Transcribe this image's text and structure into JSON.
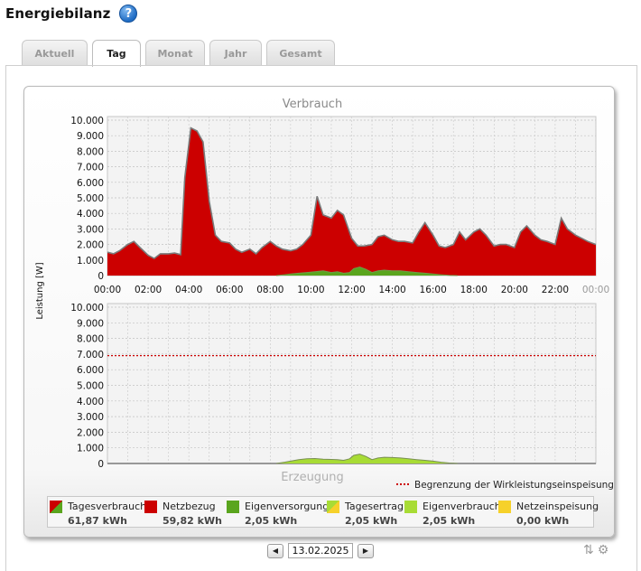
{
  "page": {
    "title": "Energiebilanz",
    "help_icon": "help-icon"
  },
  "tabs": [
    {
      "label": "Aktuell",
      "active": false
    },
    {
      "label": "Tag",
      "active": true
    },
    {
      "label": "Monat",
      "active": false
    },
    {
      "label": "Jahr",
      "active": false
    },
    {
      "label": "Gesamt",
      "active": false
    }
  ],
  "date_nav": {
    "date": "13.02.2025",
    "prev_icon": "arrow-left-icon",
    "next_icon": "arrow-right-icon"
  },
  "colors": {
    "consumption_red": "#cc0000",
    "self_supply_green": "#5aa51e",
    "yield_yellowgreen": "#a8dc35",
    "feed_in_yellow": "#f6d12a",
    "limit_line": "#cc0000",
    "outline_grey": "#7a7a7a"
  },
  "chart_data": [
    {
      "type": "area",
      "title": "Verbrauch",
      "ylabel": "Leistung [W]",
      "ylim": [
        0,
        10000
      ],
      "yticks": [
        "0",
        "1.000",
        "2.000",
        "3.000",
        "4.000",
        "5.000",
        "6.000",
        "7.000",
        "8.000",
        "9.000",
        "10.000"
      ],
      "xticks": [
        "00:00",
        "02:00",
        "04:00",
        "06:00",
        "08:00",
        "10:00",
        "12:00",
        "14:00",
        "16:00",
        "18:00",
        "20:00",
        "22:00",
        "00:00"
      ],
      "grid": true,
      "x_hours": [
        0.0,
        0.3,
        0.6,
        1.0,
        1.3,
        1.6,
        2.0,
        2.3,
        2.6,
        3.0,
        3.3,
        3.6,
        3.8,
        4.1,
        4.4,
        4.7,
        5.0,
        5.3,
        5.6,
        6.0,
        6.3,
        6.6,
        7.0,
        7.3,
        7.6,
        8.0,
        8.3,
        8.6,
        9.0,
        9.3,
        9.6,
        10.0,
        10.3,
        10.6,
        11.0,
        11.3,
        11.6,
        12.0,
        12.3,
        12.6,
        13.0,
        13.3,
        13.6,
        14.0,
        14.3,
        14.6,
        15.0,
        15.3,
        15.6,
        16.0,
        16.3,
        16.6,
        17.0,
        17.3,
        17.6,
        18.0,
        18.3,
        18.6,
        19.0,
        19.3,
        19.6,
        20.0,
        20.3,
        20.6,
        21.0,
        21.3,
        21.6,
        22.0,
        22.3,
        22.6,
        23.0,
        23.3,
        23.6,
        24.0
      ],
      "series": [
        {
          "name": "Tagesverbrauch",
          "values": [
            1500,
            1400,
            1600,
            2000,
            2200,
            1800,
            1300,
            1100,
            1400,
            1400,
            1450,
            1350,
            6300,
            9500,
            9300,
            8600,
            4800,
            2600,
            2200,
            2100,
            1700,
            1500,
            1700,
            1400,
            1800,
            2200,
            1900,
            1700,
            1600,
            1700,
            2000,
            2600,
            5100,
            3900,
            3700,
            4200,
            3900,
            2400,
            1900,
            1900,
            2000,
            2500,
            2600,
            2300,
            2200,
            2200,
            2100,
            2800,
            3400,
            2600,
            1900,
            1800,
            2000,
            2800,
            2300,
            2800,
            3000,
            2600,
            1900,
            2000,
            2000,
            1800,
            2800,
            3200,
            2600,
            2300,
            2200,
            2000,
            3700,
            3000,
            2600,
            2400,
            2200,
            2000
          ]
        },
        {
          "name": "Eigenversorgung",
          "x_hours": [
            8.3,
            8.7,
            9.0,
            9.4,
            9.8,
            10.2,
            10.6,
            11.0,
            11.3,
            11.6,
            11.9,
            12.1,
            12.4,
            12.7,
            13.0,
            13.3,
            13.6,
            14.0,
            14.4,
            14.8,
            15.2,
            15.6,
            16.0,
            16.4,
            16.8,
            17.2
          ],
          "values": [
            0,
            50,
            100,
            150,
            200,
            250,
            300,
            200,
            250,
            150,
            200,
            450,
            550,
            400,
            200,
            300,
            350,
            300,
            300,
            250,
            200,
            150,
            100,
            50,
            20,
            0
          ]
        }
      ]
    },
    {
      "type": "area",
      "title": "Erzeugung",
      "ylim": [
        0,
        10000
      ],
      "yticks": [
        "0",
        "1.000",
        "2.000",
        "3.000",
        "4.000",
        "5.000",
        "6.000",
        "7.000",
        "8.000",
        "9.000",
        "10.000"
      ],
      "grid": true,
      "limit_line": {
        "name": "Begrenzung der Wirkleistungseinspeisung",
        "value": 6900
      },
      "series": [
        {
          "name": "Tagesertrag",
          "x_hours": [
            8.3,
            8.7,
            9.0,
            9.4,
            9.8,
            10.2,
            10.6,
            11.0,
            11.3,
            11.6,
            11.9,
            12.1,
            12.4,
            12.7,
            13.0,
            13.3,
            13.6,
            14.0,
            14.4,
            14.8,
            15.2,
            15.6,
            16.0,
            16.4,
            16.8,
            17.2
          ],
          "values": [
            0,
            80,
            150,
            250,
            300,
            320,
            280,
            260,
            250,
            200,
            300,
            520,
            600,
            450,
            250,
            350,
            400,
            380,
            350,
            300,
            250,
            200,
            150,
            80,
            30,
            0
          ]
        }
      ]
    }
  ],
  "legend": [
    {
      "label": "Tagesverbrauch",
      "value": "61,87 kWh",
      "swatch": "split-red-green"
    },
    {
      "label": "Netzbezug",
      "value": "59,82 kWh",
      "swatch": "red"
    },
    {
      "label": "Eigenversorgung",
      "value": "2,05 kWh",
      "swatch": "green"
    },
    {
      "label": "Tagesertrag",
      "value": "2,05 kWh",
      "swatch": "split-yellowgreen-yellow"
    },
    {
      "label": "Eigenverbrauch",
      "value": "2,05 kWh",
      "swatch": "yellowgreen"
    },
    {
      "label": "Netzeinspeisung",
      "value": "0,00 kWh",
      "swatch": "yellow"
    }
  ]
}
